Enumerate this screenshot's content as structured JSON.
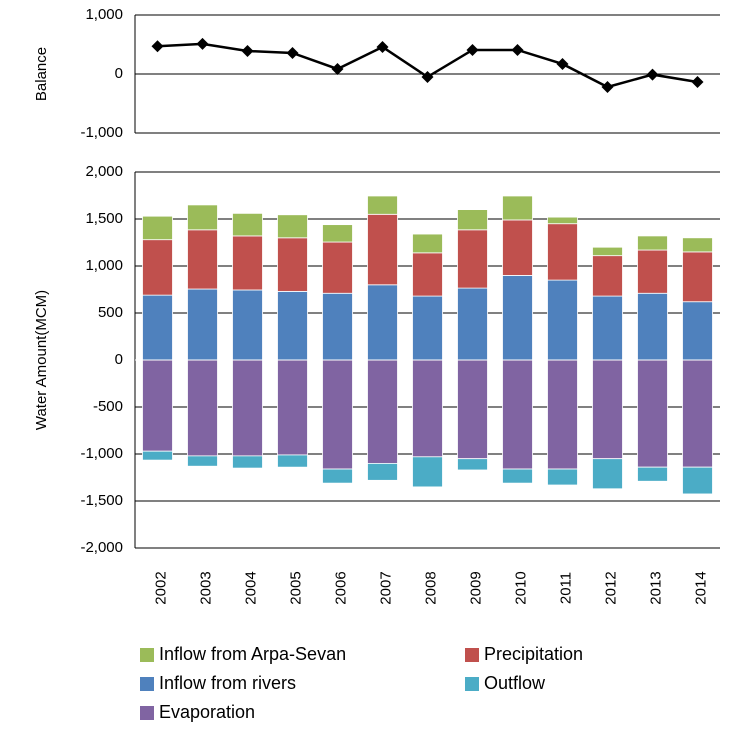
{
  "chart_data": [
    {
      "type": "line",
      "y_label": "Balance",
      "color": "#000000",
      "grid": true,
      "ylim": [
        -1000,
        1000
      ],
      "yticks": [
        {
          "value": -1000,
          "label": "-1,000"
        },
        0,
        {
          "value": 1000,
          "label": "1,000"
        }
      ],
      "values": [
        470,
        510,
        390,
        356,
        85,
        458,
        -50,
        407,
        407,
        170,
        -220,
        -10,
        -135
      ]
    },
    {
      "type": "bar",
      "stacked": true,
      "y_label": "Water Amount(MCM)",
      "grid": true,
      "ylim": [
        -2000,
        2000
      ],
      "yticks": [
        {
          "value": -2000,
          "label": "-2,000"
        },
        {
          "value": -1500,
          "label": "-1,500"
        },
        {
          "value": -1000,
          "label": "-1,000"
        },
        -500,
        0,
        500,
        {
          "value": 1000,
          "label": "1,000"
        },
        {
          "value": 1500,
          "label": "1,500"
        },
        {
          "value": 2000,
          "label": "2,000"
        }
      ],
      "categories": [
        "2002",
        "2003",
        "2004",
        "2005",
        "2006",
        "2007",
        "2008",
        "2009",
        "2010",
        "2011",
        "2012",
        "2013",
        "2014"
      ],
      "series": [
        {
          "name": "Inflow from rivers",
          "color": "#4f81bd",
          "values": [
            690,
            755,
            745,
            730,
            710,
            800,
            680,
            765,
            900,
            850,
            680,
            710,
            620
          ]
        },
        {
          "name": "Precipitation",
          "color": "#c0504d",
          "values": [
            590,
            630,
            575,
            570,
            545,
            750,
            460,
            620,
            590,
            600,
            430,
            460,
            530
          ]
        },
        {
          "name": "Inflow from Arpa-Sevan",
          "color": "#9bbb59",
          "values": [
            250,
            265,
            240,
            245,
            185,
            195,
            200,
            215,
            255,
            70,
            90,
            150,
            150
          ]
        },
        {
          "name": "Evaporation",
          "color": "#8064a2",
          "values": [
            -970,
            -1020,
            -1020,
            -1010,
            -1160,
            -1100,
            -1030,
            -1050,
            -1160,
            -1160,
            -1050,
            -1140,
            -1140
          ]
        },
        {
          "name": "Outflow",
          "color": "#4bacc6",
          "values": [
            -95,
            -110,
            -130,
            -130,
            -150,
            -180,
            -320,
            -120,
            -150,
            -170,
            -320,
            -150,
            -285
          ]
        }
      ]
    }
  ]
}
